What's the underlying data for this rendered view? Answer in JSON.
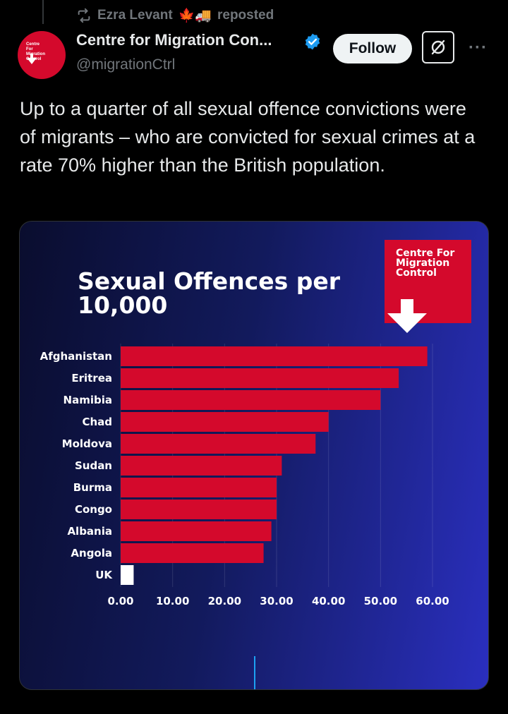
{
  "repost": {
    "user": "Ezra Levant",
    "emoji": "🍁🚚",
    "label": "reposted"
  },
  "author": {
    "name": "Centre for Migration Con...",
    "handle": "@migrationCtrl",
    "avatar_text": "Centre For Migration Control"
  },
  "follow_label": "Follow",
  "more_label": "···",
  "tweet_text": "Up to a quarter of all sexual offence convictions were of migrants – who are convicted for sexual crimes at a rate 70% higher than the British population.",
  "colors": {
    "bar": "#d4092c",
    "uk_bar": "#ffffff",
    "accent_blue": "#1d9bf0"
  },
  "image": {
    "logo_text": "Centre For Migration Control"
  },
  "chart_data": {
    "type": "bar",
    "orientation": "horizontal",
    "title": "Sexual Offences per 10,000",
    "categories": [
      "Afghanistan",
      "Eritrea",
      "Namibia",
      "Chad",
      "Moldova",
      "Sudan",
      "Burma",
      "Congo",
      "Albania",
      "Angola",
      "UK"
    ],
    "values": [
      59,
      53.5,
      50,
      40,
      37.5,
      31,
      30,
      30,
      29,
      27.5,
      2.5
    ],
    "xlim": [
      0,
      60
    ],
    "xticks": [
      "0.00",
      "10.00",
      "20.00",
      "30.00",
      "40.00",
      "50.00",
      "60.00"
    ],
    "grid": true
  }
}
